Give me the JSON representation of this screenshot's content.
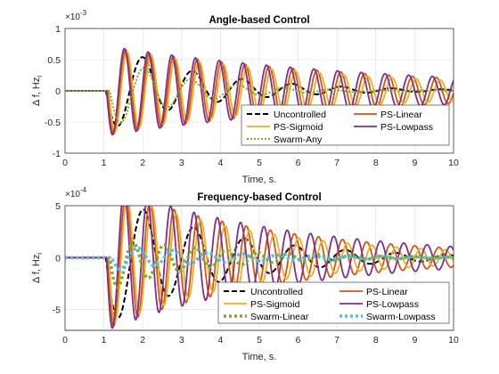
{
  "chart_data": [
    {
      "type": "line",
      "title": "Angle-based Control",
      "xlabel": "Time, s.",
      "ylabel": "Δ f, Hz",
      "ylabel_subscript": "i",
      "xlim": [
        0,
        10
      ],
      "ylim": [
        -1,
        1
      ],
      "y_exponent_label": "×10",
      "y_exponent": "-3",
      "xticks": [
        "0",
        "1",
        "2",
        "3",
        "4",
        "5",
        "6",
        "7",
        "8",
        "9",
        "10"
      ],
      "yticks": [
        "-1",
        "-0.5",
        "0",
        "0.5",
        "1"
      ],
      "ytick_values": [
        -1,
        -0.5,
        0,
        0.5,
        1
      ],
      "grid": true,
      "legend_placement": "bottom-right",
      "series": [
        {
          "name": "Uncontrolled",
          "color": "#000000",
          "style": "dashed",
          "start": 1.05,
          "amplitude": 0.72,
          "period": 1.28,
          "decay": 0.85,
          "offset_amp": 0.08,
          "offset_decay": 0.15,
          "phase_lag": 0.0,
          "end_amp": 0.02,
          "leg_row": 0,
          "leg_col": 0
        },
        {
          "name": "PS-Linear",
          "color": "#d95319",
          "style": "solid",
          "start": 1.05,
          "amplitude": 0.7,
          "period": 0.615,
          "decay": 0.28,
          "offset_amp": 0.0,
          "offset_decay": 0.15,
          "phase_lag": 0.05,
          "end_amp": 0.03,
          "leg_row": 0,
          "leg_col": 1
        },
        {
          "name": "PS-Sigmoid",
          "color": "#edb120",
          "style": "solid",
          "start": 1.05,
          "amplitude": 0.68,
          "period": 0.62,
          "decay": 0.32,
          "offset_amp": 0.0,
          "offset_decay": 0.15,
          "phase_lag": 0.08,
          "end_amp": 0.02,
          "leg_row": 1,
          "leg_col": 0
        },
        {
          "name": "PS-Lowpass",
          "color": "#7e2f8e",
          "style": "solid",
          "start": 1.05,
          "amplitude": 0.72,
          "period": 0.61,
          "decay": 0.27,
          "offset_amp": 0.0,
          "offset_decay": 0.15,
          "phase_lag": 0.02,
          "end_amp": 0.03,
          "leg_row": 1,
          "leg_col": 1
        },
        {
          "name": "Swarm-Any",
          "color": "#77ac30",
          "style": "dotted",
          "start": 1.05,
          "amplitude": 0.6,
          "period": 1.2,
          "decay": 1.1,
          "offset_amp": 0.0,
          "offset_decay": 0.15,
          "phase_lag": 0.1,
          "end_amp": 0.01,
          "leg_row": 2,
          "leg_col": 0
        }
      ]
    },
    {
      "type": "line",
      "title": "Frequency-based Control",
      "xlabel": "Time, s.",
      "ylabel": "Δ f, Hz",
      "ylabel_subscript": "i",
      "xlim": [
        0,
        10
      ],
      "ylim": [
        -7,
        5
      ],
      "y_exponent_label": "×10",
      "y_exponent": "-4",
      "xticks": [
        "0",
        "1",
        "2",
        "3",
        "4",
        "5",
        "6",
        "7",
        "8",
        "9",
        "10"
      ],
      "yticks": [
        "-5",
        "0",
        "5"
      ],
      "ytick_values": [
        -5,
        0,
        5
      ],
      "grid": true,
      "legend_placement": "bottom-right",
      "series": [
        {
          "name": "Uncontrolled",
          "color": "#000000",
          "style": "dashed",
          "start": 1.05,
          "amplitude": 6.5,
          "period": 1.3,
          "decay": 0.7,
          "offset_amp": 0.0,
          "offset_decay": 0.15,
          "phase_lag": 0.0,
          "end_amp": 0.3,
          "leg_row": 0,
          "leg_col": 0
        },
        {
          "name": "PS-Linear",
          "color": "#d95319",
          "style": "solid",
          "start": 1.05,
          "amplitude": 6.8,
          "period": 0.62,
          "decay": 0.45,
          "offset_amp": 0.0,
          "offset_decay": 0.15,
          "phase_lag": 0.05,
          "end_amp": 0.3,
          "leg_row": 0,
          "leg_col": 1
        },
        {
          "name": "PS-Sigmoid",
          "color": "#edb120",
          "style": "solid",
          "start": 1.05,
          "amplitude": 6.5,
          "period": 0.63,
          "decay": 0.5,
          "offset_amp": 0.0,
          "offset_decay": 0.15,
          "phase_lag": 0.08,
          "end_amp": 0.3,
          "leg_row": 1,
          "leg_col": 0
        },
        {
          "name": "PS-Lowpass",
          "color": "#7e2f8e",
          "style": "solid",
          "start": 1.05,
          "amplitude": 7.0,
          "period": 0.6,
          "decay": 0.42,
          "offset_amp": 0.0,
          "offset_decay": 0.15,
          "phase_lag": 0.02,
          "end_amp": 0.3,
          "leg_row": 1,
          "leg_col": 1
        },
        {
          "name": "Swarm-Linear",
          "color": "#77ac30",
          "style": "dotted-thick",
          "start": 1.05,
          "amplitude": 2.5,
          "period": 0.8,
          "decay": 0.8,
          "offset_amp": -1.0,
          "offset_decay": 0.6,
          "phase_lag": 0.1,
          "end_amp": 0.2,
          "leg_row": 2,
          "leg_col": 0
        },
        {
          "name": "Swarm-Lowpass",
          "color": "#4dbeee",
          "style": "dotted-thick",
          "start": 1.05,
          "amplitude": 1.2,
          "period": 0.9,
          "decay": 0.7,
          "offset_amp": 0.0,
          "offset_decay": 0.15,
          "phase_lag": 0.15,
          "end_amp": 0.1,
          "leg_row": 2,
          "leg_col": 1
        }
      ]
    }
  ]
}
